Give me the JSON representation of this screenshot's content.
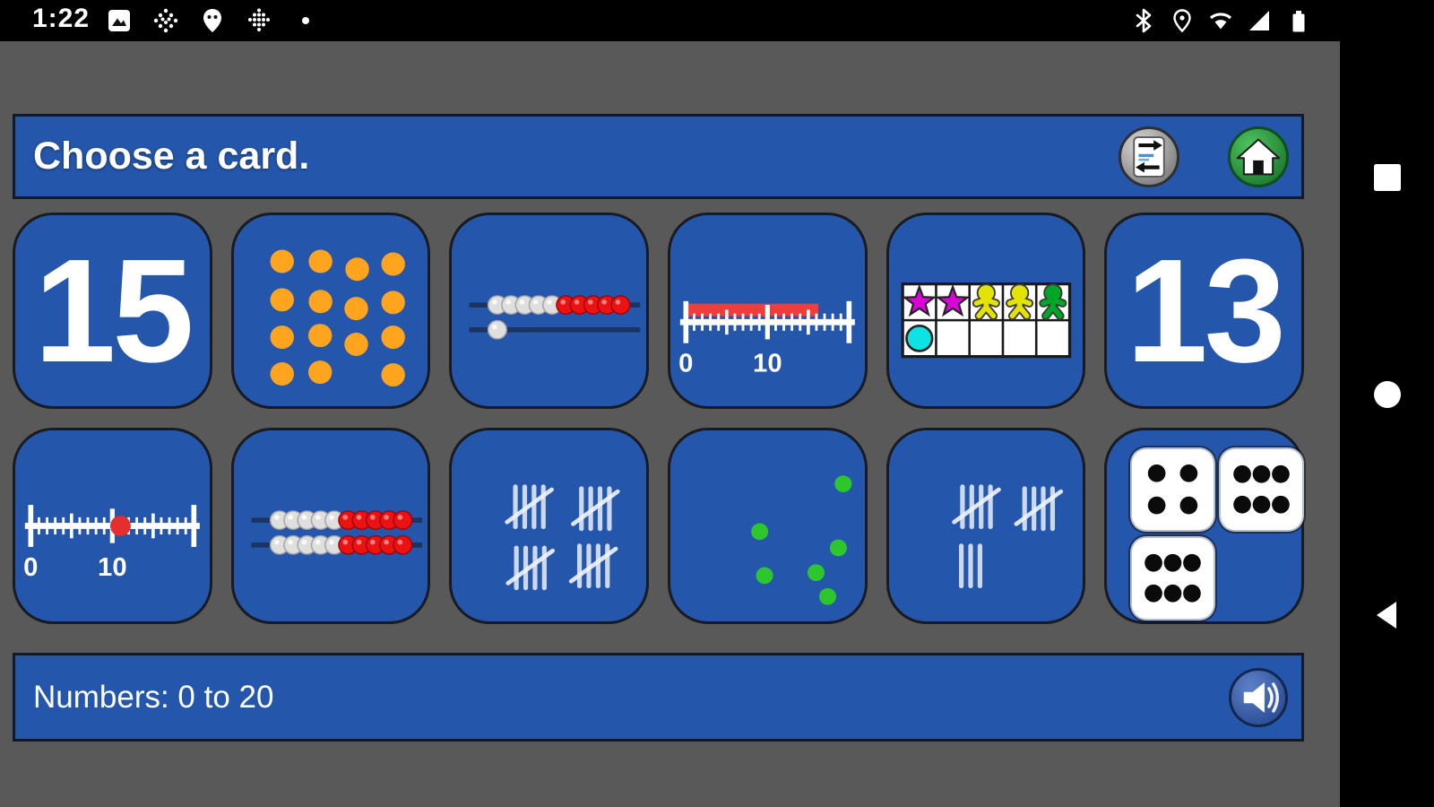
{
  "status_bar": {
    "time": "1:22",
    "left_icons": [
      "screenshot-icon",
      "dotted-star-icon",
      "maps-pin-icon",
      "dotted-grid-icon",
      "notification-dot"
    ],
    "right_icons": [
      "bluetooth-icon",
      "location-icon",
      "wifi-icon",
      "signal-icon",
      "battery-icon"
    ]
  },
  "header": {
    "title": "Choose a card.",
    "flip_button_icon": "swap-arrows-icon",
    "home_button_icon": "home-icon"
  },
  "cards": [
    {
      "type": "numeral",
      "label": "15"
    },
    {
      "type": "dot_array",
      "count": 15,
      "color": "#ffa41e",
      "dots": [
        [
          24.8,
          24.2
        ],
        [
          44.6,
          24.2
        ],
        [
          63.5,
          28.3
        ],
        [
          82,
          25.6
        ],
        [
          24.8,
          44.3
        ],
        [
          44.6,
          45.2
        ],
        [
          63,
          48.9
        ],
        [
          82,
          45.7
        ],
        [
          24.8,
          63.9
        ],
        [
          44.4,
          63
        ],
        [
          63,
          67.6
        ],
        [
          82,
          63.9
        ],
        [
          24.8,
          83.1
        ],
        [
          44.4,
          82.2
        ],
        [
          82,
          83.6
        ]
      ]
    },
    {
      "type": "rekenrek",
      "value": 11,
      "rows": [
        [
          5,
          5
        ],
        [
          1,
          0
        ]
      ]
    },
    {
      "type": "numberline_bar",
      "value": 16,
      "min": 0,
      "max": 20,
      "labels": [
        "0",
        "10"
      ]
    },
    {
      "type": "ten_frame",
      "count": 6,
      "items": [
        "star:#d902d9",
        "star:#d902d9",
        "person:#e3e300",
        "person:#e3e300",
        "person:#00a626",
        "circle:#0de3e3"
      ]
    },
    {
      "type": "numeral",
      "label": "13"
    },
    {
      "type": "numberline_dot",
      "value": 11,
      "min": 0,
      "max": 20,
      "labels": [
        "0",
        "10"
      ]
    },
    {
      "type": "rekenrek",
      "value": 20,
      "rows": [
        [
          5,
          5
        ],
        [
          5,
          5
        ]
      ]
    },
    {
      "type": "tally",
      "count": 20,
      "groups": [
        5,
        5,
        5,
        5
      ],
      "positions": [
        [
          40,
          40
        ],
        [
          74,
          41
        ],
        [
          40.5,
          72
        ],
        [
          73,
          71
        ]
      ]
    },
    {
      "type": "scatter",
      "count": 6,
      "color": "#2dc62d",
      "dots": [
        [
          89,
          28
        ],
        [
          46,
          53
        ],
        [
          86.5,
          61.5
        ],
        [
          48.5,
          76
        ],
        [
          75,
          74.5
        ],
        [
          81,
          87
        ]
      ]
    },
    {
      "type": "tally",
      "count": 13,
      "groups": [
        5,
        5,
        3
      ],
      "positions": [
        [
          45,
          40
        ],
        [
          77,
          41
        ],
        [
          42,
          71
        ]
      ]
    },
    {
      "type": "dice",
      "total": 16,
      "dice": [
        4,
        6,
        6
      ]
    }
  ],
  "footer": {
    "label": "Numbers: 0 to 20",
    "sound_button_icon": "speaker-icon"
  },
  "nav_bar": {
    "buttons": [
      "recents-square-icon",
      "home-circle-icon",
      "back-triangle-icon"
    ]
  },
  "colors": {
    "background_gray": "#59595a",
    "panel_blue": "#2456ab",
    "accent_red": "#f23b3b",
    "bead_red": "#ec1212",
    "bead_white": "#dfdfdf",
    "dot_orange": "#ffa41e",
    "dot_green": "#2dc62d",
    "tally_white": "#e4ebf6",
    "star_magenta": "#d902d9",
    "person_yellow": "#e3e300",
    "person_green": "#00a626",
    "circle_cyan": "#0de3e3",
    "home_button_green": "#2f9e42",
    "flip_button_gray": "#a8a8a8",
    "speaker_button_blue": "#3c5fa8"
  }
}
